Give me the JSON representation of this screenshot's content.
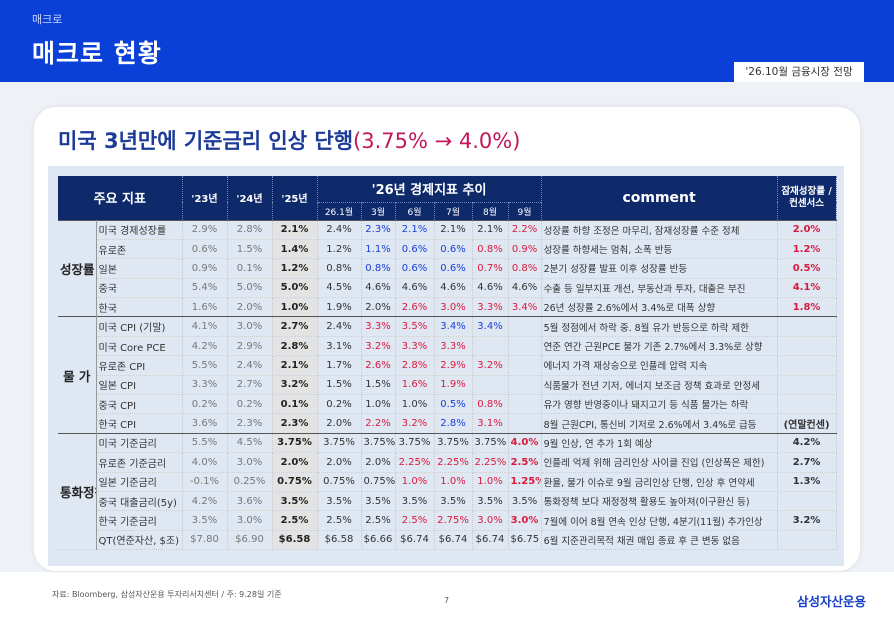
{
  "header": {
    "breadcrumb": "매크로",
    "title": "매크로 현황",
    "subtitle_tag": "'26.10월 금융시장 전망"
  },
  "headline": {
    "text": "미국 3년만에 기준금리 인상 단행",
    "accent": "(3.75% → 4.0%)"
  },
  "table": {
    "head": {
      "indicator": "주요 지표",
      "y23": "'23년",
      "y24": "'24년",
      "y25": "'25년",
      "trend26": "'26년 경제지표 추이",
      "months": [
        "26.1월",
        "3월",
        "6월",
        "7월",
        "8월",
        "9월"
      ],
      "comment": "comment",
      "consensus": "잠재성장률 /컨센서스"
    },
    "groups": [
      {
        "label": "성장률",
        "rows": [
          {
            "name": "미국 경제성장률",
            "y23": "2.9%",
            "y24": "2.8%",
            "y25": "2.1%",
            "months": [
              {
                "v": "2.4%",
                "c": ""
              },
              {
                "v": "2.3%",
                "c": "blue"
              },
              {
                "v": "2.1%",
                "c": "blue"
              },
              {
                "v": "2.1%",
                "c": ""
              },
              {
                "v": "2.1%",
                "c": ""
              },
              {
                "v": "2.2%",
                "c": "red"
              }
            ],
            "comment": "성장률 하향 조정은 마무리, 잠재성장률 수준 정체",
            "cs": "2.0%",
            "cs_color": "red"
          },
          {
            "name": "유로존",
            "y23": "0.6%",
            "y24": "1.5%",
            "y25": "1.4%",
            "months": [
              {
                "v": "1.2%",
                "c": ""
              },
              {
                "v": "1.1%",
                "c": "blue"
              },
              {
                "v": "0.6%",
                "c": "blue"
              },
              {
                "v": "0.6%",
                "c": "blue"
              },
              {
                "v": "0.8%",
                "c": "red"
              },
              {
                "v": "0.9%",
                "c": "red"
              }
            ],
            "comment": "성장률 하향세는 멈춰, 소폭 반등",
            "cs": "1.2%",
            "cs_color": "red"
          },
          {
            "name": "일본",
            "y23": "0.9%",
            "y24": "0.1%",
            "y25": "1.2%",
            "months": [
              {
                "v": "0.8%",
                "c": ""
              },
              {
                "v": "0.8%",
                "c": "blue"
              },
              {
                "v": "0.6%",
                "c": "blue"
              },
              {
                "v": "0.6%",
                "c": "blue"
              },
              {
                "v": "0.7%",
                "c": "red"
              },
              {
                "v": "0.8%",
                "c": "red"
              }
            ],
            "comment": "2분기 성장률 발표 이후 성장률 반등",
            "cs": "0.5%",
            "cs_color": "red"
          },
          {
            "name": "중국",
            "y23": "5.4%",
            "y24": "5.0%",
            "y25": "5.0%",
            "months": [
              {
                "v": "4.5%",
                "c": ""
              },
              {
                "v": "4.6%",
                "c": ""
              },
              {
                "v": "4.6%",
                "c": ""
              },
              {
                "v": "4.6%",
                "c": ""
              },
              {
                "v": "4.6%",
                "c": ""
              },
              {
                "v": "4.6%",
                "c": ""
              }
            ],
            "comment": "수출 등 일부지표 개선, 부동산과 투자, 대출은 부진",
            "cs": "4.1%",
            "cs_color": "red"
          },
          {
            "name": "한국",
            "y23": "1.6%",
            "y24": "2.0%",
            "y25": "1.0%",
            "months": [
              {
                "v": "1.9%",
                "c": ""
              },
              {
                "v": "2.0%",
                "c": ""
              },
              {
                "v": "2.6%",
                "c": "red"
              },
              {
                "v": "3.0%",
                "c": "red"
              },
              {
                "v": "3.3%",
                "c": "red"
              },
              {
                "v": "3.4%",
                "c": "red"
              }
            ],
            "comment": "26년 성장률 2.6%에서 3.4%로 대폭 상향",
            "cs": "1.8%",
            "cs_color": "red"
          }
        ]
      },
      {
        "label": "물 가",
        "rows": [
          {
            "name": "미국 CPI (기말)",
            "y23": "4.1%",
            "y24": "3.0%",
            "y25": "2.7%",
            "months": [
              {
                "v": "2.4%",
                "c": ""
              },
              {
                "v": "3.3%",
                "c": "red"
              },
              {
                "v": "3.5%",
                "c": "red"
              },
              {
                "v": "3.4%",
                "c": "blue"
              },
              {
                "v": "3.4%",
                "c": "blue"
              },
              {
                "v": "",
                "c": ""
              }
            ],
            "comment": "5월 정점에서 하락 중. 8월 유가 반등으로 하락 제한",
            "cs": "",
            "cs_color": ""
          },
          {
            "name": "미국 Core PCE",
            "y23": "4.2%",
            "y24": "2.9%",
            "y25": "2.8%",
            "months": [
              {
                "v": "3.1%",
                "c": ""
              },
              {
                "v": "3.2%",
                "c": "red"
              },
              {
                "v": "3.3%",
                "c": "red"
              },
              {
                "v": "3.3%",
                "c": "red"
              },
              {
                "v": "",
                "c": ""
              },
              {
                "v": "",
                "c": ""
              }
            ],
            "comment": "연준 연간 근원PCE 물가 기존 2.7%에서 3.3%로 상향",
            "cs": "",
            "cs_color": ""
          },
          {
            "name": "유로존 CPI",
            "y23": "5.5%",
            "y24": "2.4%",
            "y25": "2.1%",
            "months": [
              {
                "v": "1.7%",
                "c": ""
              },
              {
                "v": "2.6%",
                "c": "red"
              },
              {
                "v": "2.8%",
                "c": "red"
              },
              {
                "v": "2.9%",
                "c": "red"
              },
              {
                "v": "3.2%",
                "c": "red"
              },
              {
                "v": "",
                "c": ""
              }
            ],
            "comment": "에너지 가격 재상승으로 인플레 압력 지속",
            "cs": "",
            "cs_color": ""
          },
          {
            "name": "일본 CPI",
            "y23": "3.3%",
            "y24": "2.7%",
            "y25": "3.2%",
            "months": [
              {
                "v": "1.5%",
                "c": ""
              },
              {
                "v": "1.5%",
                "c": ""
              },
              {
                "v": "1.6%",
                "c": "red"
              },
              {
                "v": "1.9%",
                "c": "red"
              },
              {
                "v": "",
                "c": ""
              },
              {
                "v": "",
                "c": ""
              }
            ],
            "comment": "식품물가 전년 기저, 에너지 보조금 정책 효과로 안정세",
            "cs": "",
            "cs_color": ""
          },
          {
            "name": "중국 CPI",
            "y23": "0.2%",
            "y24": "0.2%",
            "y25": "0.1%",
            "months": [
              {
                "v": "0.2%",
                "c": ""
              },
              {
                "v": "1.0%",
                "c": ""
              },
              {
                "v": "1.0%",
                "c": ""
              },
              {
                "v": "0.5%",
                "c": "blue"
              },
              {
                "v": "0.8%",
                "c": "red"
              },
              {
                "v": "",
                "c": ""
              }
            ],
            "comment": "유가 영향 반영중이나 돼지고기 등 식품 물가는 하락",
            "cs": "",
            "cs_color": ""
          },
          {
            "name": "한국 CPI",
            "y23": "3.6%",
            "y24": "2.3%",
            "y25": "2.3%",
            "months": [
              {
                "v": "2.0%",
                "c": ""
              },
              {
                "v": "2.2%",
                "c": "red"
              },
              {
                "v": "3.2%",
                "c": "red"
              },
              {
                "v": "2.8%",
                "c": "blue"
              },
              {
                "v": "3.1%",
                "c": "red"
              },
              {
                "v": "",
                "c": ""
              }
            ],
            "comment": "8월 근원CPI, 통신비 기저로 2.6%에서 3.4%로 급등",
            "cs": "(연말컨센)",
            "cs_color": ""
          }
        ]
      },
      {
        "label": "통화정책",
        "rows": [
          {
            "name": "미국 기준금리",
            "y23": "5.5%",
            "y24": "4.5%",
            "y25": "3.75%",
            "months": [
              {
                "v": "3.75%",
                "c": ""
              },
              {
                "v": "3.75%",
                "c": ""
              },
              {
                "v": "3.75%",
                "c": ""
              },
              {
                "v": "3.75%",
                "c": ""
              },
              {
                "v": "3.75%",
                "c": ""
              },
              {
                "v": "4.0%",
                "c": "red bold"
              }
            ],
            "comment": "9월 인상, 연 추가 1회 예상",
            "cs": "4.2%",
            "cs_color": ""
          },
          {
            "name": "유로존 기준금리",
            "y23": "4.0%",
            "y24": "3.0%",
            "y25": "2.0%",
            "months": [
              {
                "v": "2.0%",
                "c": ""
              },
              {
                "v": "2.0%",
                "c": ""
              },
              {
                "v": "2.25%",
                "c": "red"
              },
              {
                "v": "2.25%",
                "c": "red"
              },
              {
                "v": "2.25%",
                "c": "red"
              },
              {
                "v": "2.5%",
                "c": "red bold"
              }
            ],
            "comment": "인플레 억제 위해 금리인상 사이클 진입 (인상폭은 제한)",
            "cs": "2.7%",
            "cs_color": ""
          },
          {
            "name": "일본 기준금리",
            "y23": "-0.1%",
            "y24": "0.25%",
            "y25": "0.75%",
            "months": [
              {
                "v": "0.75%",
                "c": ""
              },
              {
                "v": "0.75%",
                "c": ""
              },
              {
                "v": "1.0%",
                "c": "red"
              },
              {
                "v": "1.0%",
                "c": "red"
              },
              {
                "v": "1.0%",
                "c": "red"
              },
              {
                "v": "1.25%",
                "c": "red bold"
              }
            ],
            "comment": "환율, 물가 이슈로 9월 금리인상 단행, 인상 후 연약세",
            "cs": "1.3%",
            "cs_color": ""
          },
          {
            "name": "중국 대출금리(5y)",
            "y23": "4.2%",
            "y24": "3.6%",
            "y25": "3.5%",
            "months": [
              {
                "v": "3.5%",
                "c": ""
              },
              {
                "v": "3.5%",
                "c": ""
              },
              {
                "v": "3.5%",
                "c": ""
              },
              {
                "v": "3.5%",
                "c": ""
              },
              {
                "v": "3.5%",
                "c": ""
              },
              {
                "v": "3.5%",
                "c": ""
              }
            ],
            "comment": "통화정책 보다 재정정책 활용도 높아져(이구환신 등)",
            "cs": "",
            "cs_color": ""
          },
          {
            "name": "한국 기준금리",
            "y23": "3.5%",
            "y24": "3.0%",
            "y25": "2.5%",
            "months": [
              {
                "v": "2.5%",
                "c": ""
              },
              {
                "v": "2.5%",
                "c": ""
              },
              {
                "v": "2.5%",
                "c": "red"
              },
              {
                "v": "2.75%",
                "c": "red"
              },
              {
                "v": "3.0%",
                "c": "red"
              },
              {
                "v": "3.0%",
                "c": "red bold"
              }
            ],
            "comment": "7월에 이어 8월 연속 인상 단행, 4분기(11월) 추가인상",
            "cs": "3.2%",
            "cs_color": ""
          },
          {
            "name": "QT(연준자산, $조)",
            "y23": "$7.80",
            "y24": "$6.90",
            "y25": "$6.58",
            "months": [
              {
                "v": "$6.58",
                "c": ""
              },
              {
                "v": "$6.66",
                "c": ""
              },
              {
                "v": "$6.74",
                "c": ""
              },
              {
                "v": "$6.74",
                "c": ""
              },
              {
                "v": "$6.74",
                "c": ""
              },
              {
                "v": "$6.75",
                "c": ""
              }
            ],
            "comment": "6월 지준관리목적 채권 매입 종료 후 큰 변동 없음",
            "cs": "",
            "cs_color": ""
          }
        ]
      }
    ]
  },
  "footer": {
    "source": "자료: Bloomberg, 삼성자산운용 투자리서치센터 / 주: 9.28일 기준",
    "page": "7",
    "logo": "삼성자산운용"
  },
  "colors": {
    "brand_blue": "#0a3fd8",
    "header_navy": "#0f2a6b",
    "up_red": "#d81b3c",
    "down_blue": "#1a3fd6"
  }
}
